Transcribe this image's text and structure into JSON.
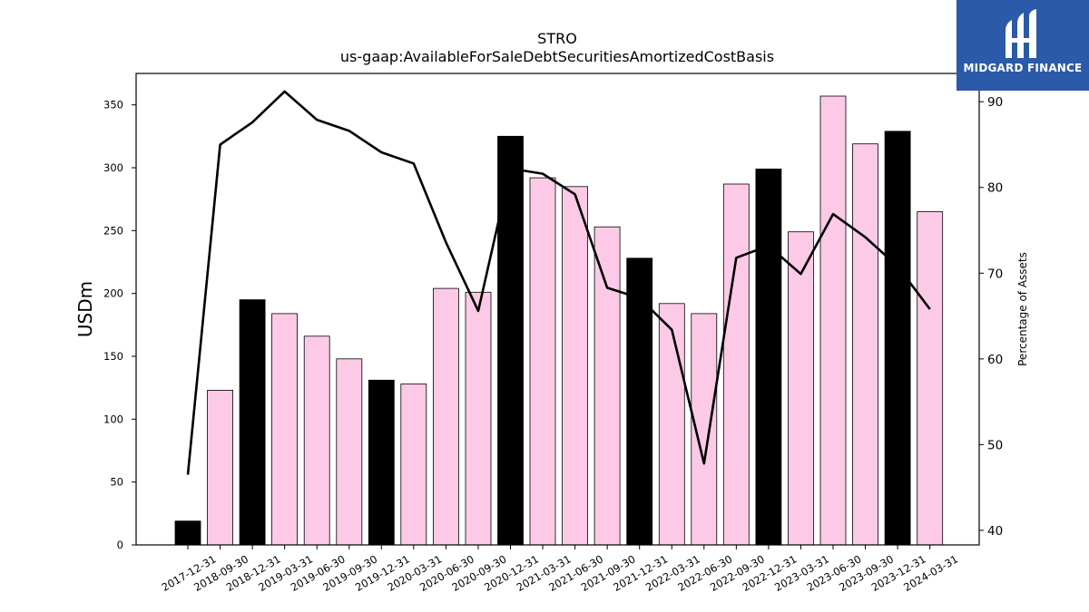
{
  "chart_data": {
    "type": "bar+line",
    "title": "STRO",
    "subtitle": "us-gaap:AvailableForSaleDebtSecuritiesAmortizedCostBasis",
    "ylabel": "USDm",
    "y2label": "Percentage of Assets",
    "ylim": [
      0,
      375
    ],
    "y2lim": [
      38.3,
      93.3
    ],
    "yticks": [
      "0",
      "50",
      "100",
      "150",
      "200",
      "250",
      "300",
      "350"
    ],
    "y2ticks": [
      "40",
      "50",
      "60",
      "70",
      "80",
      "90"
    ],
    "categories": [
      "2017-12-31",
      "2018-09-30",
      "2018-12-31",
      "2019-03-31",
      "2019-06-30",
      "2019-09-30",
      "2019-12-31",
      "2020-03-31",
      "2020-06-30",
      "2020-09-30",
      "2020-12-31",
      "2021-03-31",
      "2021-06-30",
      "2021-09-30",
      "2021-12-31",
      "2022-03-31",
      "2022-06-30",
      "2022-09-30",
      "2022-12-31",
      "2023-03-31",
      "2023-06-30",
      "2023-09-30",
      "2023-12-31",
      "2024-03-31"
    ],
    "series": [
      {
        "kind": "bar",
        "values": [
          19,
          123,
          195,
          184,
          166,
          148,
          131,
          128,
          204,
          201,
          325,
          292,
          285,
          253,
          228,
          192,
          184,
          287,
          299,
          249,
          357,
          319,
          329,
          265
        ],
        "highlight": [
          true,
          false,
          true,
          false,
          false,
          false,
          true,
          false,
          false,
          false,
          true,
          false,
          false,
          false,
          true,
          false,
          false,
          false,
          true,
          false,
          false,
          false,
          true,
          false
        ],
        "color": "#fccae6",
        "highlight_color": "#000000"
      },
      {
        "kind": "line",
        "axis": "right",
        "values": [
          46.5,
          85.0,
          87.6,
          91.2,
          87.9,
          86.6,
          84.1,
          82.8,
          73.6,
          65.6,
          82.2,
          81.6,
          79.2,
          68.3,
          67.1,
          63.4,
          47.8,
          71.8,
          73.2,
          69.9,
          76.9,
          74.2,
          70.8,
          65.8
        ],
        "color": "#000000"
      }
    ]
  },
  "logo": {
    "text": "MIDGARD FINANCE",
    "bg_color": "#2b5aa8"
  }
}
